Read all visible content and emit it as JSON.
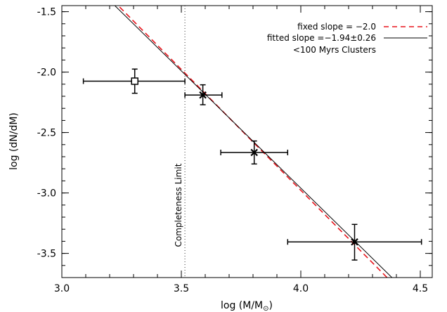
{
  "chart_data": {
    "type": "scatter",
    "xlabel_prefix": "log (M/M",
    "xlabel_sub": "⊙",
    "xlabel_suffix": ")",
    "ylabel": "log (dN/dM)",
    "xlim": [
      3.0,
      4.55
    ],
    "ylim": [
      -3.7,
      -1.45
    ],
    "x_ticks": [
      3.0,
      3.5,
      4.0,
      4.5
    ],
    "x_tick_labels": [
      "3.0",
      "3.5",
      "4.0",
      "4.5"
    ],
    "y_ticks": [
      -1.5,
      -2.0,
      -2.5,
      -3.0,
      -3.5
    ],
    "y_tick_labels": [
      "-1.5",
      "-2.0",
      "-2.5",
      "-3.0",
      "-3.5"
    ],
    "x_minor_step": 0.1,
    "y_minor_step": 0.1,
    "legend": {
      "position": "top-right",
      "entries": [
        {
          "label": "fixed slope = −2.0",
          "style": "dashed",
          "color": "#e8141b"
        },
        {
          "label": "fitted slope =−1.94±0.26",
          "style": "solid",
          "color": "#000000"
        },
        {
          "label": "<100 Myrs Clusters",
          "style": "none",
          "color": "#000000"
        }
      ]
    },
    "lines": [
      {
        "name": "fixed slope",
        "slope": -2.0,
        "intercept": 5.022,
        "color": "#e8141b",
        "style": "dashed"
      },
      {
        "name": "fitted slope",
        "slope": -1.94,
        "intercept": 4.8,
        "color": "#000000",
        "style": "solid"
      }
    ],
    "completeness_limit": {
      "x": 3.515,
      "label": "Completeness Limit"
    },
    "points": [
      {
        "x": 3.305,
        "y": -2.075,
        "xerr_low": 3.09,
        "xerr_high": 3.515,
        "yerr_low": -2.175,
        "yerr_high": -1.975,
        "marker": "square"
      },
      {
        "x": 3.59,
        "y": -2.19,
        "xerr_low": 3.515,
        "xerr_high": 3.67,
        "yerr_low": -2.27,
        "yerr_high": -2.105,
        "marker": "x"
      },
      {
        "x": 3.805,
        "y": -2.665,
        "xerr_low": 3.665,
        "xerr_high": 3.945,
        "yerr_low": -2.76,
        "yerr_high": -2.57,
        "marker": "x"
      },
      {
        "x": 4.225,
        "y": -3.405,
        "xerr_low": 3.945,
        "xerr_high": 4.505,
        "yerr_low": -3.555,
        "yerr_high": -3.26,
        "marker": "x"
      }
    ]
  }
}
